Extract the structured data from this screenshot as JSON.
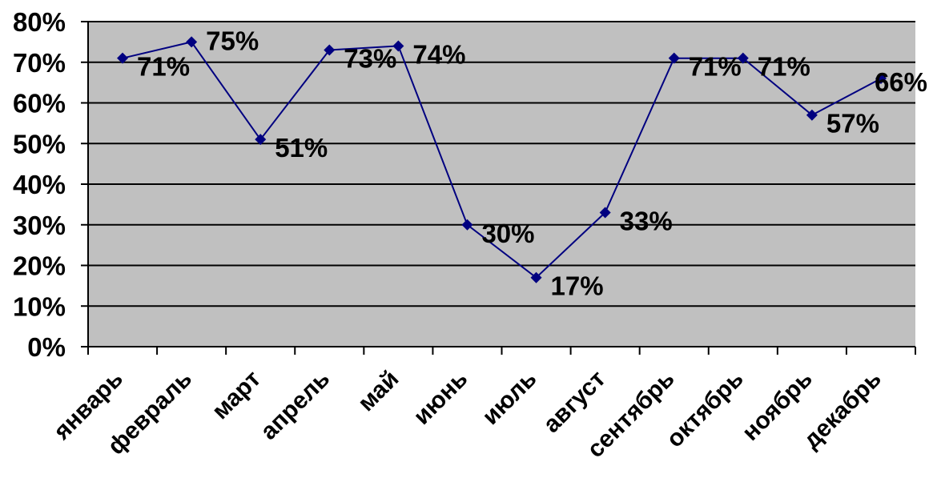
{
  "chart_data": {
    "type": "line",
    "categories": [
      "январь",
      "февраль",
      "март",
      "апрель",
      "май",
      "июнь",
      "июль",
      "август",
      "сентябрь",
      "октябрь",
      "ноябрь",
      "декабрь"
    ],
    "series": [
      {
        "values": [
          71,
          75,
          51,
          73,
          74,
          30,
          17,
          33,
          71,
          71,
          57,
          66
        ],
        "data_labels": [
          "71%",
          "75%",
          "51%",
          "73%",
          "74%",
          "30%",
          "17%",
          "33%",
          "71%",
          "71%",
          "57%",
          "66%"
        ]
      }
    ],
    "yticks": [
      "0%",
      "10%",
      "20%",
      "30%",
      "40%",
      "50%",
      "60%",
      "70%",
      "80%"
    ],
    "ylim": [
      0,
      80
    ],
    "grid": true,
    "legend": "none",
    "colors": {
      "plot_area": "#c0c0c0",
      "line": "#000080",
      "gridline": "#000000",
      "text": "#000000"
    },
    "title": "",
    "xlabel": "",
    "ylabel": ""
  }
}
